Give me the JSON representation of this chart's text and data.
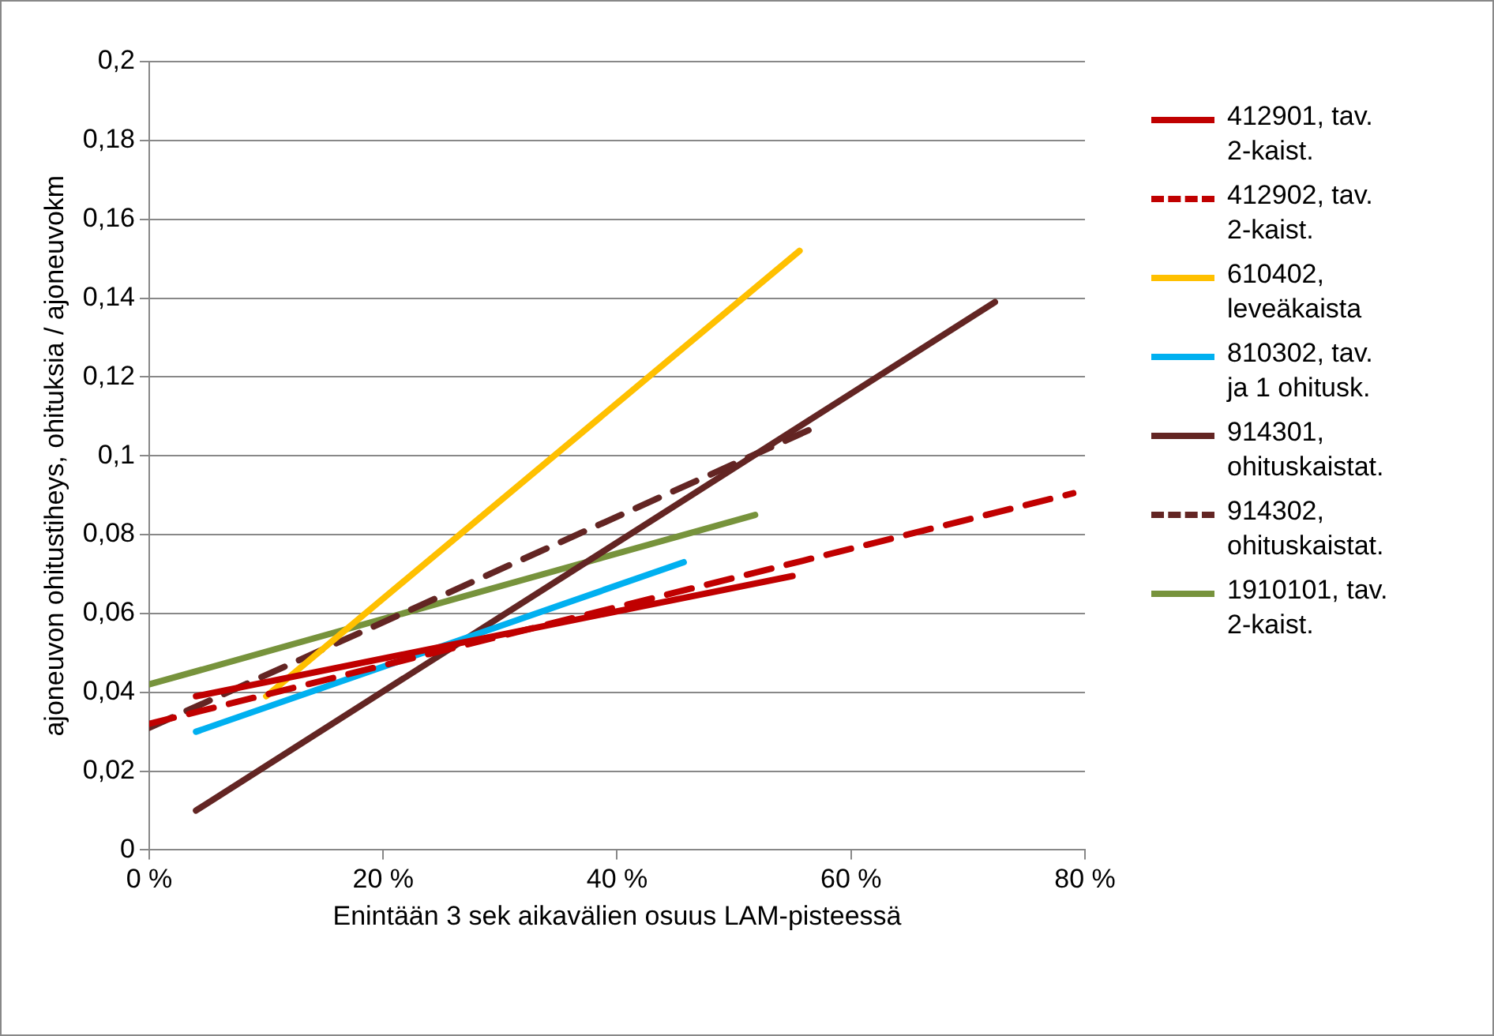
{
  "chart_data": {
    "type": "line",
    "xlabel": "Enintään 3 sek aikavälien osuus LAM-pisteessä",
    "ylabel": "ajoneuvon ohitustiheys, ohituksia / ajoneuvokm",
    "xlim": [
      0,
      80
    ],
    "xticks": [
      {
        "value": 0,
        "label": "0 %"
      },
      {
        "value": 20,
        "label": "20 %"
      },
      {
        "value": 40,
        "label": "40 %"
      },
      {
        "value": 60,
        "label": "60 %"
      },
      {
        "value": 80,
        "label": "80 %"
      }
    ],
    "ylim": [
      0,
      0.2
    ],
    "yticks": [
      {
        "value": 0,
        "label": "0"
      },
      {
        "value": 0.02,
        "label": "0,02"
      },
      {
        "value": 0.04,
        "label": "0,04"
      },
      {
        "value": 0.06,
        "label": "0,06"
      },
      {
        "value": 0.08,
        "label": "0,08"
      },
      {
        "value": 0.1,
        "label": "0,1"
      },
      {
        "value": 0.12,
        "label": "0,12"
      },
      {
        "value": 0.14,
        "label": "0,14"
      },
      {
        "value": 0.16,
        "label": "0,16"
      },
      {
        "value": 0.18,
        "label": "0,18"
      },
      {
        "value": 0.2,
        "label": "0,2"
      }
    ],
    "grid": "y",
    "legend": "right",
    "marker": "none",
    "series": [
      {
        "name": "412901, tav. 2-kaist.",
        "color": "#c00000",
        "line_style": "solid",
        "x": [
          4,
          55
        ],
        "values": [
          0.039,
          0.0695
        ]
      },
      {
        "name": "412902, tav. 2-kaist.",
        "color": "#c00000",
        "line_style": "dashed",
        "x": [
          0,
          79
        ],
        "values": [
          0.032,
          0.0905
        ]
      },
      {
        "name": "610402, leveäkaista",
        "color": "#ffc000",
        "line_style": "solid",
        "x": [
          10,
          55.6
        ],
        "values": [
          0.039,
          0.152
        ]
      },
      {
        "name": "810302, tav. ja 1 ohitusk.",
        "color": "#00b0f0",
        "line_style": "solid",
        "x": [
          4,
          45.7
        ],
        "values": [
          0.03,
          0.073
        ]
      },
      {
        "name": "914301, ohituskaistat.",
        "color": "#632523",
        "line_style": "solid",
        "x": [
          4,
          72.3
        ],
        "values": [
          0.01,
          0.139
        ]
      },
      {
        "name": "914302, ohituskaistat.",
        "color": "#632523",
        "line_style": "dashed",
        "x": [
          0,
          57.5
        ],
        "values": [
          0.031,
          0.108
        ]
      },
      {
        "name": "1910101, tav. 2-kaist.",
        "color": "#77933c",
        "line_style": "solid",
        "x": [
          0,
          51.8
        ],
        "values": [
          0.042,
          0.085
        ]
      }
    ]
  }
}
